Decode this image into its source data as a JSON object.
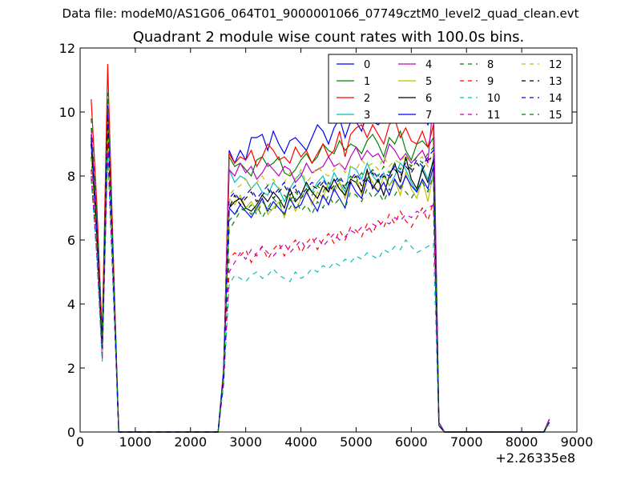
{
  "figure": {
    "suptitle": "Data file: modeM0/AS1G06_064T01_9000001066_07749cztM0_level2_quad_clean.evt"
  },
  "chart_data": {
    "type": "line",
    "title": "Quadrant 2 module wise count rates with 100.0s bins.",
    "xlabel": "",
    "ylabel": "",
    "x_offset_label": "+2.26335e8",
    "xlim": [
      0,
      9000
    ],
    "ylim": [
      0,
      12
    ],
    "xticks": [
      0,
      1000,
      2000,
      3000,
      4000,
      5000,
      6000,
      7000,
      8000,
      9000
    ],
    "yticks": [
      0,
      2,
      4,
      6,
      8,
      10,
      12
    ],
    "grid": false,
    "legend": {
      "placement": "top-right",
      "columns": 4
    },
    "x": [
      200,
      300,
      400,
      500,
      600,
      700,
      800,
      2500,
      2600,
      2700,
      2800,
      2900,
      3000,
      3100,
      3200,
      3300,
      3400,
      3500,
      3600,
      3700,
      3800,
      3900,
      4000,
      4100,
      4200,
      4300,
      4400,
      4500,
      4600,
      4700,
      4800,
      4900,
      5000,
      5100,
      5200,
      5300,
      5400,
      5500,
      5600,
      5700,
      5800,
      5900,
      6000,
      6100,
      6200,
      6300,
      6400,
      6500,
      6600,
      6700,
      8400,
      8500
    ],
    "series": [
      {
        "name": "0",
        "color": "#0000ff",
        "dash": "solid",
        "values": [
          9.3,
          6.5,
          2.7,
          10.2,
          5.2,
          0,
          0,
          0,
          1.9,
          8.8,
          8.4,
          8.8,
          8.5,
          9.2,
          9.2,
          9.3,
          8.8,
          9.4,
          9.0,
          8.7,
          9.1,
          9.2,
          9.0,
          8.8,
          9.2,
          9.6,
          9.4,
          9.0,
          9.5,
          9.8,
          9.2,
          9.7,
          9.7,
          9.4,
          10.0,
          9.7,
          9.6,
          9.8,
          9.9,
          10.1,
          9.8,
          10.0,
          9.8,
          10.0,
          10.0,
          9.6,
          10.1,
          0.3,
          0,
          0,
          0,
          0.4
        ]
      },
      {
        "name": "1",
        "color": "#008000",
        "dash": "solid",
        "values": [
          9.2,
          6.3,
          2.6,
          9.9,
          5.0,
          0,
          0,
          0,
          1.8,
          8.6,
          8.3,
          8.4,
          8.2,
          8.0,
          8.5,
          8.6,
          8.3,
          8.4,
          8.6,
          8.1,
          8.0,
          8.2,
          8.5,
          8.7,
          8.4,
          8.6,
          9.0,
          8.8,
          8.7,
          9.1,
          8.8,
          9.0,
          8.9,
          8.7,
          9.1,
          9.3,
          9.0,
          8.6,
          9.2,
          9.0,
          9.4,
          8.8,
          8.5,
          9.0,
          9.1,
          8.9,
          9.2,
          0.3,
          0,
          0,
          0,
          0.4
        ]
      },
      {
        "name": "2",
        "color": "#ff0000",
        "dash": "solid",
        "values": [
          10.4,
          7.2,
          3.0,
          11.5,
          5.6,
          0,
          0,
          0,
          2.0,
          8.7,
          8.4,
          8.6,
          8.5,
          8.8,
          8.3,
          8.6,
          9.0,
          8.8,
          8.5,
          8.6,
          8.4,
          8.9,
          8.6,
          8.8,
          8.4,
          8.7,
          9.0,
          8.6,
          8.8,
          9.4,
          8.6,
          9.3,
          9.5,
          9.6,
          9.2,
          9.6,
          9.3,
          9.0,
          9.6,
          9.8,
          9.2,
          9.5,
          9.1,
          9.0,
          9.4,
          8.9,
          9.6,
          0.3,
          0,
          0,
          0,
          0.4
        ]
      },
      {
        "name": "3",
        "color": "#00bfbf",
        "dash": "solid",
        "values": [
          9.0,
          6.2,
          2.5,
          9.8,
          5.0,
          0,
          0,
          0,
          1.8,
          8.2,
          7.8,
          8.0,
          7.9,
          7.6,
          7.8,
          7.5,
          7.4,
          7.8,
          7.6,
          7.2,
          7.6,
          7.9,
          8.1,
          7.7,
          7.5,
          7.8,
          8.0,
          7.6,
          8.1,
          7.8,
          7.5,
          8.3,
          8.2,
          7.9,
          8.4,
          8.0,
          7.8,
          8.1,
          7.7,
          8.0,
          8.4,
          8.2,
          7.8,
          7.5,
          8.3,
          7.9,
          8.5,
          0.3,
          0,
          0,
          0,
          0.3
        ]
      },
      {
        "name": "4",
        "color": "#bf00bf",
        "dash": "solid",
        "values": [
          9.5,
          6.6,
          2.7,
          10.1,
          5.2,
          0,
          0,
          0,
          1.9,
          8.2,
          8.0,
          8.4,
          8.1,
          8.3,
          7.9,
          8.1,
          8.4,
          8.2,
          8.0,
          8.3,
          8.2,
          7.8,
          8.0,
          8.4,
          8.1,
          8.2,
          8.3,
          8.6,
          8.3,
          8.4,
          8.2,
          8.6,
          8.9,
          8.5,
          8.8,
          8.6,
          8.7,
          8.4,
          9.0,
          8.8,
          8.5,
          8.7,
          8.4,
          8.6,
          8.8,
          8.4,
          10.4,
          0.3,
          0,
          0,
          0,
          0.4
        ]
      },
      {
        "name": "5",
        "color": "#bfbf00",
        "dash": "solid",
        "values": [
          8.8,
          6.1,
          2.5,
          9.6,
          4.9,
          0,
          0,
          0,
          1.7,
          7.3,
          7.1,
          7.4,
          7.0,
          7.2,
          6.9,
          7.3,
          6.8,
          7.0,
          7.2,
          6.7,
          7.4,
          6.9,
          7.3,
          7.6,
          7.1,
          7.5,
          7.3,
          7.8,
          7.5,
          7.8,
          7.3,
          7.9,
          8.0,
          7.4,
          8.1,
          7.8,
          7.5,
          8.0,
          7.7,
          7.9,
          7.4,
          8.1,
          7.6,
          7.3,
          7.9,
          7.2,
          8.1,
          0.2,
          0,
          0,
          0,
          0.3
        ]
      },
      {
        "name": "6",
        "color": "#000000",
        "dash": "solid",
        "values": [
          9.0,
          6.3,
          2.6,
          9.9,
          5.0,
          0,
          0,
          0,
          1.8,
          7.0,
          7.2,
          7.3,
          7.0,
          6.9,
          7.1,
          7.4,
          7.2,
          7.5,
          7.3,
          7.0,
          7.6,
          7.2,
          7.4,
          7.8,
          7.5,
          7.3,
          7.7,
          7.5,
          7.9,
          7.6,
          7.4,
          7.9,
          7.8,
          7.5,
          8.2,
          7.6,
          7.9,
          7.4,
          8.0,
          8.4,
          7.8,
          8.6,
          7.9,
          7.6,
          8.2,
          7.8,
          8.5,
          0.2,
          0,
          0,
          0,
          0.3
        ]
      },
      {
        "name": "7",
        "color": "#0000ff",
        "dash": "solid",
        "values": [
          9.1,
          6.4,
          2.6,
          10.0,
          5.1,
          0,
          0,
          0,
          1.8,
          7.0,
          6.8,
          7.1,
          6.9,
          6.7,
          7.0,
          7.3,
          6.9,
          7.2,
          7.0,
          6.8,
          7.3,
          7.0,
          7.1,
          7.5,
          7.2,
          6.9,
          7.4,
          7.1,
          7.6,
          7.3,
          7.0,
          7.8,
          7.5,
          7.3,
          7.9,
          7.7,
          7.5,
          7.8,
          7.4,
          7.9,
          7.6,
          8.0,
          7.7,
          7.5,
          7.9,
          7.6,
          8.3,
          0.2,
          0,
          0,
          0,
          0.3
        ]
      },
      {
        "name": "8",
        "color": "#008000",
        "dash": "dashed",
        "values": [
          8.6,
          6.0,
          2.4,
          9.5,
          4.8,
          0,
          0,
          0,
          1.7,
          6.3,
          6.6,
          6.9,
          7.0,
          6.8,
          7.1,
          6.7,
          7.0,
          6.9,
          7.2,
          6.8,
          7.0,
          7.3,
          6.9,
          7.1,
          6.8,
          7.2,
          7.0,
          7.4,
          7.1,
          7.3,
          7.0,
          7.5,
          7.4,
          7.2,
          7.6,
          7.3,
          7.5,
          7.2,
          7.6,
          7.4,
          7.7,
          7.5,
          7.3,
          7.6,
          7.8,
          7.5,
          8.0,
          0.2,
          0,
          0,
          0,
          0.3
        ]
      },
      {
        "name": "9",
        "color": "#ff0000",
        "dash": "dashed",
        "values": [
          8.2,
          5.7,
          2.3,
          9.0,
          4.6,
          0,
          0,
          0,
          1.6,
          5.4,
          5.6,
          5.5,
          5.7,
          5.3,
          5.6,
          5.8,
          5.4,
          5.7,
          5.9,
          5.5,
          5.8,
          6.0,
          5.6,
          5.9,
          6.1,
          5.7,
          6.0,
          6.2,
          5.9,
          6.3,
          6.0,
          6.4,
          6.3,
          6.1,
          6.5,
          6.2,
          6.6,
          6.4,
          6.8,
          6.5,
          6.9,
          6.6,
          6.4,
          6.7,
          7.0,
          6.6,
          7.2,
          0.2,
          0,
          0,
          0,
          0.3
        ]
      },
      {
        "name": "10",
        "color": "#00bfbf",
        "dash": "dashed",
        "values": [
          7.9,
          5.5,
          2.2,
          8.7,
          4.4,
          0,
          0,
          0,
          1.5,
          4.6,
          4.9,
          4.8,
          4.7,
          4.9,
          5.0,
          4.8,
          4.9,
          5.1,
          4.9,
          4.8,
          4.7,
          5.0,
          4.8,
          4.9,
          5.1,
          5.0,
          5.2,
          5.1,
          5.3,
          5.2,
          5.4,
          5.3,
          5.5,
          5.4,
          5.6,
          5.5,
          5.4,
          5.7,
          5.6,
          5.8,
          5.7,
          6.0,
          5.8,
          5.6,
          5.7,
          5.8,
          5.9,
          0.2,
          0,
          0,
          0,
          0.2
        ]
      },
      {
        "name": "11",
        "color": "#bf00bf",
        "dash": "dashed",
        "values": [
          8.0,
          5.6,
          2.3,
          8.8,
          4.5,
          0,
          0,
          0,
          1.5,
          5.0,
          5.3,
          5.6,
          5.4,
          5.7,
          5.5,
          5.8,
          5.6,
          5.5,
          5.7,
          5.9,
          5.6,
          5.8,
          6.0,
          5.7,
          5.9,
          6.1,
          5.8,
          6.0,
          6.2,
          6.0,
          6.1,
          6.3,
          6.2,
          6.4,
          6.3,
          6.5,
          6.4,
          6.6,
          6.5,
          6.7,
          6.6,
          6.8,
          6.7,
          6.9,
          6.8,
          7.0,
          7.1,
          0.2,
          0,
          0,
          0,
          0.3
        ]
      },
      {
        "name": "12",
        "color": "#bfbf00",
        "dash": "dashed",
        "values": [
          8.9,
          6.2,
          2.5,
          9.7,
          4.9,
          0,
          0,
          0,
          1.8,
          7.4,
          7.6,
          7.7,
          7.9,
          7.6,
          7.8,
          8.0,
          7.7,
          7.9,
          7.6,
          7.8,
          8.1,
          7.9,
          8.2,
          7.8,
          8.0,
          8.3,
          8.1,
          8.0,
          8.2,
          8.4,
          8.1,
          8.3,
          8.2,
          8.5,
          8.3,
          8.4,
          8.2,
          8.6,
          8.3,
          8.5,
          8.4,
          8.7,
          8.2,
          8.5,
          8.6,
          8.3,
          8.8,
          0.2,
          0,
          0,
          0,
          0.3
        ]
      },
      {
        "name": "13",
        "color": "#000000",
        "dash": "dashed",
        "values": [
          9.0,
          6.3,
          2.6,
          9.8,
          5.0,
          0,
          0,
          0,
          1.8,
          7.0,
          7.4,
          7.1,
          7.3,
          7.5,
          7.2,
          7.4,
          7.6,
          7.3,
          7.5,
          7.7,
          7.4,
          7.6,
          7.3,
          7.5,
          7.7,
          7.6,
          7.8,
          7.5,
          7.7,
          7.9,
          7.6,
          7.8,
          8.0,
          7.7,
          7.9,
          8.1,
          7.8,
          8.0,
          7.9,
          8.2,
          8.0,
          8.3,
          8.1,
          8.4,
          8.2,
          8.5,
          8.6,
          0.2,
          0,
          0,
          0,
          0.3
        ]
      },
      {
        "name": "14",
        "color": "#0000ff",
        "dash": "dashed",
        "values": [
          9.2,
          6.4,
          2.6,
          10.0,
          5.1,
          0,
          0,
          0,
          1.8,
          7.3,
          7.5,
          7.2,
          7.4,
          7.6,
          7.3,
          7.5,
          7.7,
          7.4,
          7.6,
          7.8,
          7.5,
          7.7,
          7.4,
          7.6,
          7.8,
          7.7,
          7.9,
          7.6,
          7.8,
          8.0,
          7.7,
          7.9,
          8.1,
          7.8,
          8.0,
          8.2,
          7.9,
          8.1,
          8.0,
          8.3,
          8.1,
          8.4,
          8.2,
          8.5,
          8.3,
          8.6,
          8.8,
          0.2,
          0,
          0,
          0,
          0.3
        ]
      },
      {
        "name": "15",
        "color": "#008000",
        "dash": "dashed",
        "values": [
          9.8,
          6.8,
          2.8,
          10.6,
          5.4,
          0,
          0,
          0,
          1.9,
          6.6,
          6.8,
          7.0,
          6.9,
          7.1,
          6.8,
          7.2,
          7.0,
          7.3,
          7.1,
          7.4,
          7.2,
          7.5,
          7.3,
          7.6,
          7.4,
          7.7,
          7.5,
          7.8,
          7.6,
          7.9,
          7.7,
          8.0,
          7.8,
          8.1,
          7.9,
          8.2,
          8.0,
          8.3,
          8.1,
          8.4,
          8.2,
          8.5,
          8.3,
          8.6,
          8.4,
          8.7,
          8.9,
          0.2,
          0,
          0,
          0,
          0.3
        ]
      }
    ]
  }
}
